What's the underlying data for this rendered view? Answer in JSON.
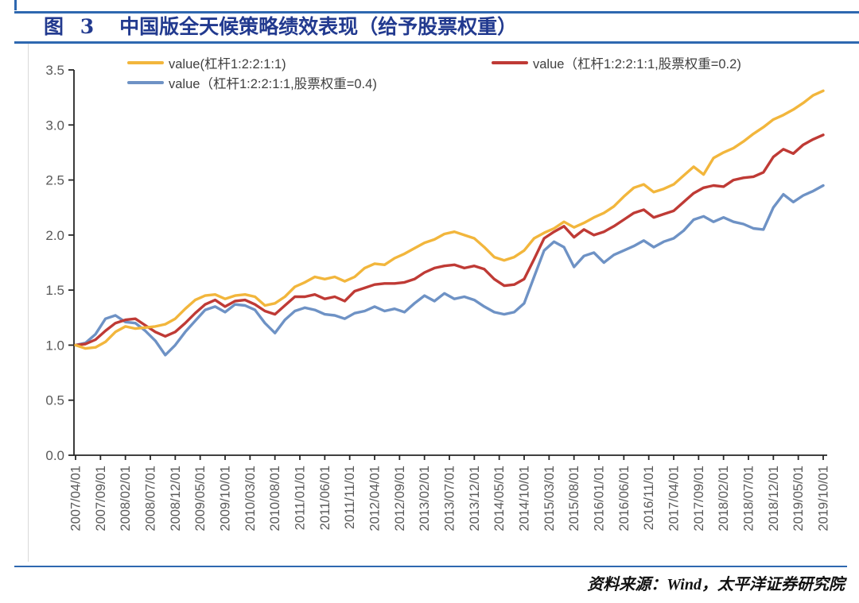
{
  "title": {
    "prefix": "图 3",
    "main": "中国版全天候策略绩效表现（给予股票权重）"
  },
  "legend": [
    {
      "label": "value(杠杆1:2:2:1:1)",
      "color": "#f2b63c"
    },
    {
      "label": "value（杠杆1:2:2:1:1,股票权重=0.2)",
      "color": "#bf3a35"
    },
    {
      "label": "value（杠杆1:2:2:1:1,股票权重=0.4)",
      "color": "#6e92c5"
    }
  ],
  "source_note": "资料来源：Wind，太平洋证券研究院",
  "colors": {
    "rule_blue": "#2e68b0",
    "title_navy": "#223a8f",
    "axis": "#262626",
    "tick_text": "#595959"
  },
  "chart_data": {
    "type": "line",
    "title": "中国版全天候策略绩效表现（给予股票权重）",
    "xlabel": "",
    "ylabel": "",
    "ylim": [
      0.0,
      3.5
    ],
    "y_tick_labels": [
      "0.0",
      "0.5",
      "1.0",
      "1.5",
      "2.0",
      "2.5",
      "3.0",
      "3.5"
    ],
    "y_tick_values": [
      0.0,
      0.5,
      1.0,
      1.5,
      2.0,
      2.5,
      3.0,
      3.5
    ],
    "grid": false,
    "legend_position": "top",
    "x_start": "2007/04/01",
    "x_end": "2019/10/01",
    "x_month_step": 2,
    "x_tick_labels": [
      "2007/04/01",
      "2007/09/01",
      "2008/02/01",
      "2008/07/01",
      "2008/12/01",
      "2009/05/01",
      "2009/10/01",
      "2010/03/01",
      "2010/08/01",
      "2011/01/01",
      "2011/06/01",
      "2011/11/01",
      "2012/04/01",
      "2012/09/01",
      "2013/02/01",
      "2013/07/01",
      "2013/12/01",
      "2014/05/01",
      "2014/10/01",
      "2015/03/01",
      "2015/08/01",
      "2016/01/01",
      "2016/06/01",
      "2016/11/01",
      "2017/04/01",
      "2017/09/01",
      "2018/02/01",
      "2018/07/01",
      "2018/12/01",
      "2019/05/01",
      "2019/10/01"
    ],
    "series": [
      {
        "name": "value(杠杆1:2:2:1:1)",
        "color": "#f2b63c",
        "values": [
          1.0,
          0.97,
          0.98,
          1.03,
          1.12,
          1.17,
          1.15,
          1.16,
          1.17,
          1.19,
          1.24,
          1.33,
          1.41,
          1.45,
          1.46,
          1.42,
          1.45,
          1.46,
          1.44,
          1.36,
          1.38,
          1.44,
          1.53,
          1.57,
          1.62,
          1.6,
          1.62,
          1.58,
          1.62,
          1.7,
          1.74,
          1.73,
          1.79,
          1.83,
          1.88,
          1.93,
          1.96,
          2.01,
          2.03,
          2.0,
          1.97,
          1.89,
          1.8,
          1.77,
          1.8,
          1.86,
          1.97,
          2.02,
          2.06,
          2.12,
          2.07,
          2.11,
          2.16,
          2.2,
          2.26,
          2.35,
          2.43,
          2.46,
          2.39,
          2.42,
          2.46,
          2.54,
          2.62,
          2.55,
          2.7,
          2.75,
          2.79,
          2.85,
          2.92,
          2.98,
          3.05,
          3.09,
          3.14,
          3.2,
          3.27,
          3.31
        ]
      },
      {
        "name": "value（杠杆1:2:2:1:1,股票权重=0.2)",
        "color": "#bf3a35",
        "values": [
          1.0,
          1.01,
          1.05,
          1.13,
          1.2,
          1.23,
          1.24,
          1.18,
          1.12,
          1.08,
          1.12,
          1.2,
          1.29,
          1.37,
          1.41,
          1.35,
          1.4,
          1.41,
          1.37,
          1.31,
          1.28,
          1.36,
          1.44,
          1.44,
          1.46,
          1.42,
          1.44,
          1.4,
          1.49,
          1.52,
          1.55,
          1.56,
          1.56,
          1.57,
          1.6,
          1.66,
          1.7,
          1.72,
          1.73,
          1.7,
          1.72,
          1.69,
          1.6,
          1.54,
          1.55,
          1.6,
          1.78,
          1.97,
          2.03,
          2.08,
          1.98,
          2.05,
          2.0,
          2.03,
          2.08,
          2.14,
          2.2,
          2.23,
          2.16,
          2.19,
          2.22,
          2.3,
          2.38,
          2.43,
          2.45,
          2.44,
          2.5,
          2.52,
          2.53,
          2.57,
          2.71,
          2.78,
          2.74,
          2.82,
          2.87,
          2.91
        ]
      },
      {
        "name": "value（杠杆1:2:2:1:1,股票权重=0.4)",
        "color": "#6e92c5",
        "values": [
          1.0,
          1.02,
          1.1,
          1.24,
          1.27,
          1.21,
          1.2,
          1.13,
          1.04,
          0.91,
          1.0,
          1.12,
          1.22,
          1.32,
          1.35,
          1.3,
          1.37,
          1.36,
          1.32,
          1.2,
          1.11,
          1.23,
          1.31,
          1.34,
          1.32,
          1.28,
          1.27,
          1.24,
          1.29,
          1.31,
          1.35,
          1.31,
          1.33,
          1.3,
          1.38,
          1.45,
          1.4,
          1.47,
          1.42,
          1.44,
          1.41,
          1.35,
          1.3,
          1.28,
          1.3,
          1.38,
          1.62,
          1.86,
          1.94,
          1.89,
          1.71,
          1.81,
          1.84,
          1.75,
          1.82,
          1.86,
          1.9,
          1.95,
          1.89,
          1.94,
          1.97,
          2.04,
          2.14,
          2.17,
          2.12,
          2.16,
          2.12,
          2.1,
          2.06,
          2.05,
          2.25,
          2.37,
          2.3,
          2.36,
          2.4,
          2.45
        ]
      }
    ]
  }
}
